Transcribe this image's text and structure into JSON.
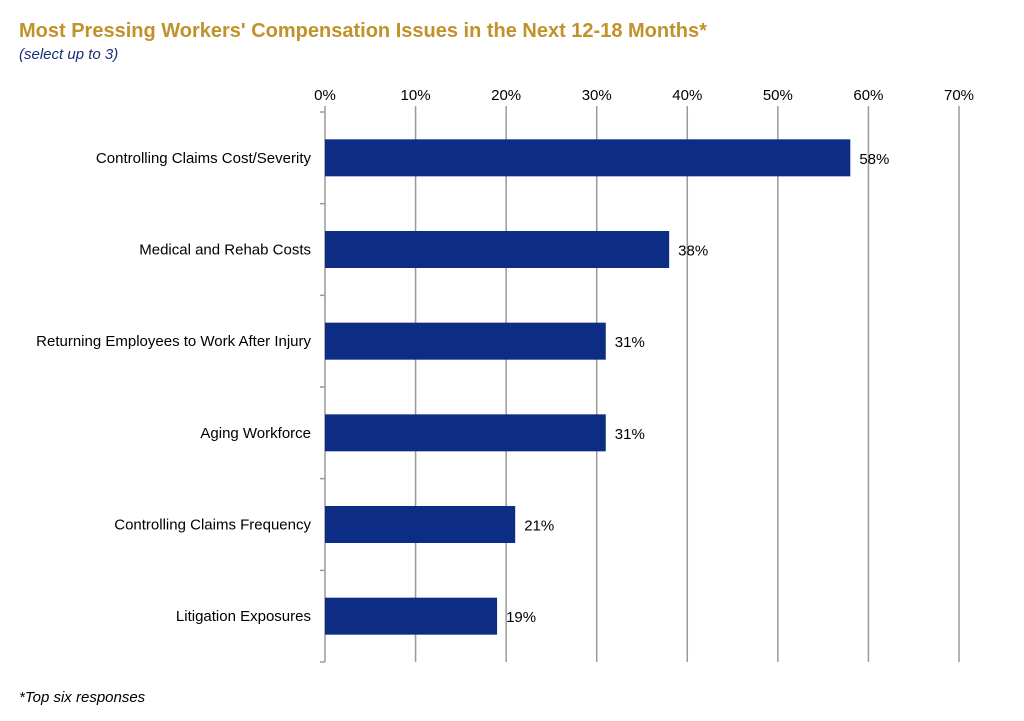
{
  "title": "Most Pressing Workers' Compensation Issues in the Next 12-18 Months*",
  "subtitle": "(select up to 3)",
  "footnote": "*Top six responses",
  "colors": {
    "title": "#c0922a",
    "subtitle": "#1a2f7a",
    "bar": "#0d2d85",
    "grid": "#9a9a9a"
  },
  "chart_data": {
    "type": "bar",
    "orientation": "horizontal",
    "categories": [
      "Controlling Claims Cost/Severity",
      "Medical and Rehab Costs",
      "Returning Employees to Work After Injury",
      "Aging Workforce",
      "Controlling Claims Frequency",
      "Litigation Exposures"
    ],
    "values": [
      58,
      38,
      31,
      31,
      21,
      19
    ],
    "data_labels": [
      "58%",
      "38%",
      "31%",
      "31%",
      "21%",
      "19%"
    ],
    "x_ticks": [
      "0%",
      "10%",
      "20%",
      "30%",
      "40%",
      "50%",
      "60%",
      "70%"
    ],
    "xlim": [
      0,
      70
    ],
    "x_axis_position": "top",
    "grid": true,
    "legend": "none"
  }
}
